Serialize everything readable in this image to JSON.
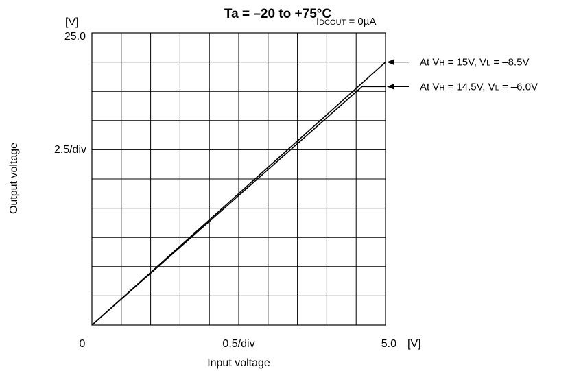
{
  "chart_data": {
    "type": "line",
    "title": "Ta = –20 to +75°C",
    "condition": {
      "main": "I",
      "sub": "DCOUT",
      "rest": " = 0µA"
    },
    "xlabel": "Input voltage",
    "ylabel": "Output voltage",
    "x_unit_label": "[V]",
    "y_unit_label": "[V]",
    "x_tick_labels": {
      "min": "0",
      "mid": "0.5/div",
      "max": "5.0"
    },
    "y_tick_labels": {
      "max": "25.0",
      "mid": "2.5/div"
    },
    "xlim": [
      0,
      5.0
    ],
    "ylim": [
      0,
      25.0
    ],
    "x_divisions": 10,
    "y_divisions": 10,
    "x_per_div": 0.5,
    "y_per_div": 2.5,
    "grid": true,
    "series": [
      {
        "x": [
          0,
          5.0
        ],
        "y": [
          0,
          22.5
        ]
      },
      {
        "x": [
          0,
          4.6,
          5.0
        ],
        "y": [
          0,
          20.4,
          20.4
        ]
      }
    ],
    "annotations": [
      {
        "target_y": 22.5,
        "parts": [
          "At V",
          "H",
          " = 15V, V",
          "L",
          " = –8.5V"
        ]
      },
      {
        "target_y": 20.4,
        "parts": [
          "At V",
          "H",
          " = 14.5V, V",
          "L",
          " = –6.0V"
        ]
      }
    ],
    "line_color": "#000000",
    "grid_color": "#000000"
  }
}
